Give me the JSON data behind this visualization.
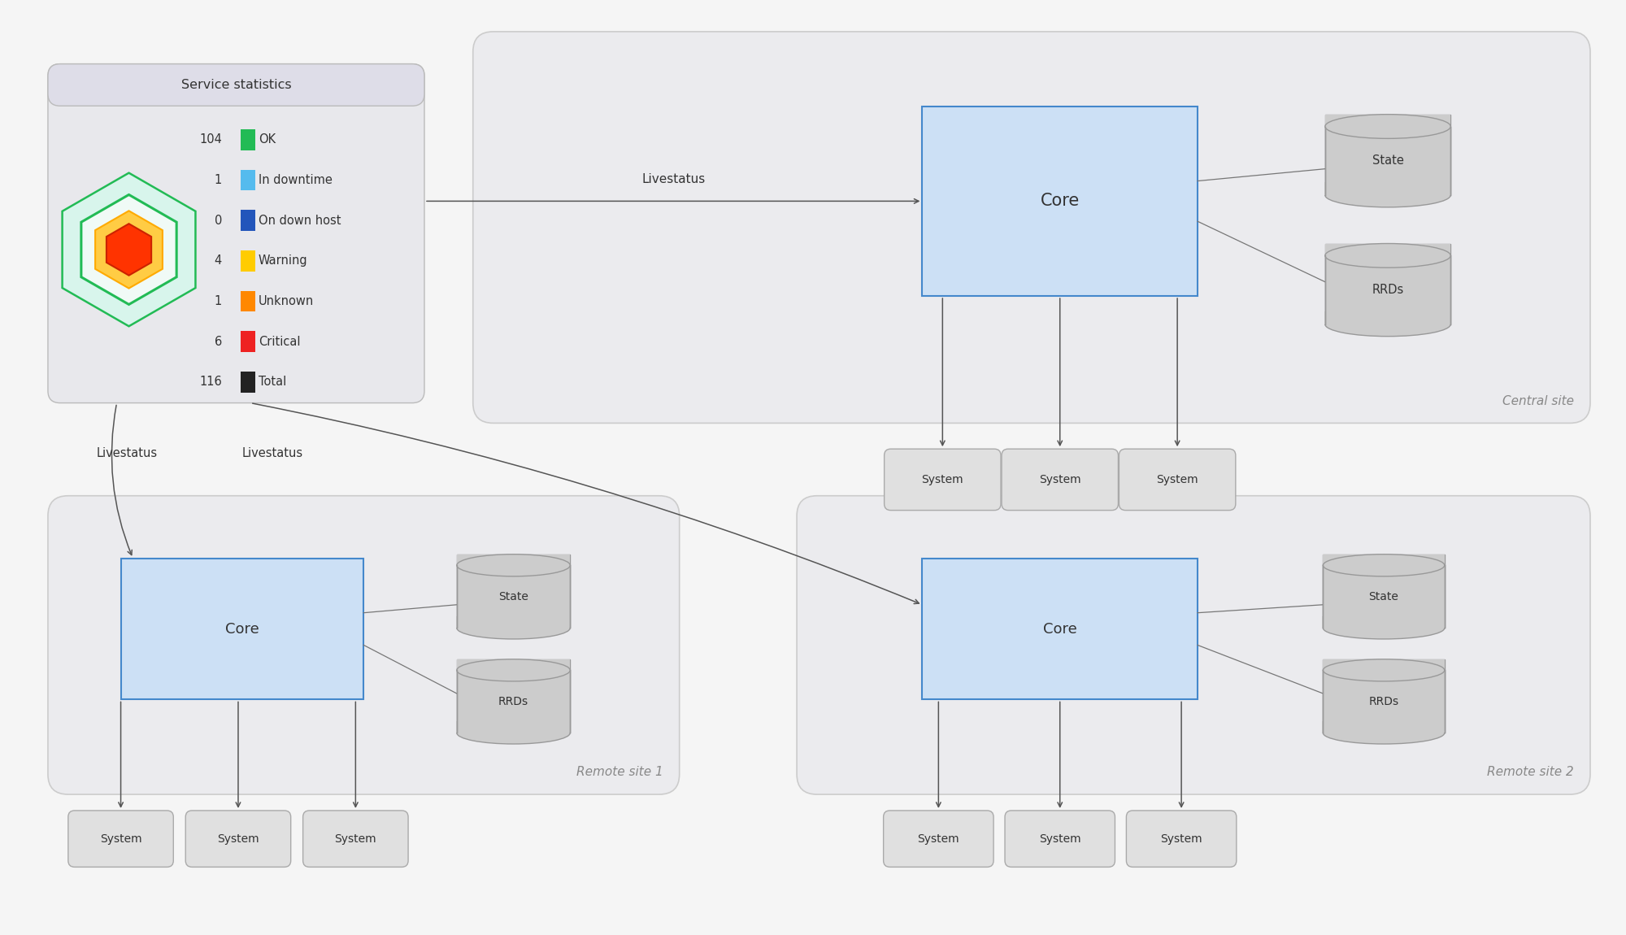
{
  "bg_color": "#f5f5f5",
  "panel_bg": "#ebebee",
  "core_fill": "#cce0f5",
  "core_border": "#4488cc",
  "cylinder_fill": "#cccccc",
  "cylinder_border": "#999999",
  "system_fill": "#e0e0e0",
  "system_border": "#aaaaaa",
  "stats_panel_bg": "#e8e8ec",
  "stats_title_bg": "#dedde8",
  "stats_title": "Service statistics",
  "stats_items": [
    {
      "count": "104",
      "color": "#22bb55",
      "label": "OK"
    },
    {
      "count": "1",
      "color": "#55bbee",
      "label": "In downtime"
    },
    {
      "count": "0",
      "color": "#2255bb",
      "label": "On down host"
    },
    {
      "count": "4",
      "color": "#ffcc00",
      "label": "Warning"
    },
    {
      "count": "1",
      "color": "#ff8800",
      "label": "Unknown"
    },
    {
      "count": "6",
      "color": "#ee2222",
      "label": "Critical"
    },
    {
      "count": "116",
      "color": "#222222",
      "label": "Total"
    }
  ],
  "hex_layers": [
    {
      "size": 0.95,
      "face": "#d8f5ec",
      "edge": "#22bb55",
      "lw": 1.8
    },
    {
      "size": 0.68,
      "face": "#f0faf6",
      "edge": "#22bb55",
      "lw": 2.2
    },
    {
      "size": 0.48,
      "face": "#ffcc44",
      "edge": "#ffaa00",
      "lw": 1.5
    },
    {
      "size": 0.32,
      "face": "#ff3300",
      "edge": "#cc2200",
      "lw": 1.5
    }
  ],
  "central_site_label": "Central site",
  "remote1_label": "Remote site 1",
  "remote2_label": "Remote site 2",
  "livestatus": "Livestatus",
  "arrow_color": "#555555",
  "line_color": "#777777"
}
